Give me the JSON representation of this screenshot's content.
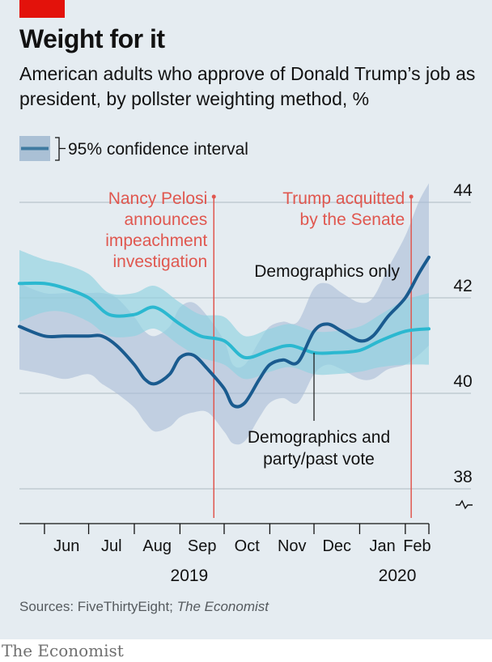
{
  "title": "Weight for it",
  "subtitle": "American adults who approve of Donald Trump’s job as president, by pollster weighting method, %",
  "source_prefix": "Sources: FiveThirtyEight; ",
  "source_italic": "The Economist",
  "brand": "The Economist",
  "colors": {
    "dark_line": "#1a5b8f",
    "light_line": "#2bb8d0",
    "dark_band": "#a9bcd7",
    "light_band": "#8fd3e0",
    "annotation": "#e0574f",
    "accent_bar": "#e3120b"
  },
  "chart_data": {
    "type": "line",
    "title": "Weight for it",
    "ylabel": "",
    "xlabel": "",
    "ylim": [
      38,
      44
    ],
    "y_ticks": [
      38,
      40,
      42,
      44
    ],
    "y_axis_break": true,
    "grid": true,
    "legend": {
      "position": "top-left",
      "entries": [
        "95% confidence interval"
      ]
    },
    "x_range": [
      "2019-05-15",
      "2020-02-17"
    ],
    "month_ticks": [
      "2019-06-01",
      "2019-07-01",
      "2019-08-01",
      "2019-09-01",
      "2019-10-01",
      "2019-11-01",
      "2019-12-01",
      "2020-01-01",
      "2020-02-01",
      "2020-03-01"
    ],
    "month_labels": [
      "Jun",
      "Jul",
      "Aug",
      "Sep",
      "Oct",
      "Nov",
      "Dec",
      "Jan",
      "Feb"
    ],
    "year_labels": [
      {
        "text": "2019",
        "date": "2019-09-01"
      },
      {
        "text": "2020",
        "date": "2020-02-01"
      }
    ],
    "events": [
      {
        "date": "2019-09-24",
        "lines": [
          "Nancy Pelosi",
          "announces",
          "impeachment",
          "investigation"
        ]
      },
      {
        "date": "2020-02-05",
        "lines": [
          "Trump acquitted",
          "by the Senate"
        ]
      }
    ],
    "series": [
      {
        "name": "Demographics only",
        "x": [
          "2019-05-15",
          "2019-06-01",
          "2019-06-15",
          "2019-07-01",
          "2019-07-10",
          "2019-07-20",
          "2019-08-01",
          "2019-08-08",
          "2019-08-15",
          "2019-08-25",
          "2019-09-01",
          "2019-09-10",
          "2019-09-20",
          "2019-10-01",
          "2019-10-07",
          "2019-10-15",
          "2019-10-25",
          "2019-11-01",
          "2019-11-10",
          "2019-11-20",
          "2019-12-01",
          "2019-12-10",
          "2019-12-20",
          "2020-01-01",
          "2020-01-10",
          "2020-01-20",
          "2020-02-01",
          "2020-02-10",
          "2020-02-17"
        ],
        "values": [
          41.4,
          41.2,
          41.2,
          41.2,
          41.2,
          41.0,
          40.6,
          40.3,
          40.2,
          40.4,
          40.75,
          40.8,
          40.5,
          40.1,
          39.75,
          39.8,
          40.3,
          40.6,
          40.7,
          40.65,
          41.3,
          41.45,
          41.3,
          41.1,
          41.2,
          41.6,
          42.0,
          42.5,
          42.85
        ],
        "ci_low": [
          40.5,
          40.4,
          40.3,
          40.4,
          40.2,
          40.0,
          39.7,
          39.4,
          39.2,
          39.3,
          39.5,
          39.6,
          39.6,
          39.2,
          38.95,
          39.0,
          39.5,
          39.8,
          39.9,
          39.8,
          40.4,
          40.6,
          40.5,
          40.3,
          40.3,
          40.5,
          40.6,
          40.8,
          41.0
        ],
        "ci_high": [
          42.3,
          42.1,
          42.1,
          42.1,
          42.1,
          42.0,
          41.6,
          41.3,
          41.2,
          41.4,
          41.8,
          41.9,
          41.6,
          41.1,
          40.6,
          40.6,
          41.1,
          41.4,
          41.5,
          41.5,
          42.2,
          42.3,
          42.1,
          41.9,
          42.0,
          42.6,
          43.3,
          44.0,
          44.4
        ]
      },
      {
        "name": "Demographics and party/past vote",
        "x": [
          "2019-05-15",
          "2019-06-01",
          "2019-06-15",
          "2019-07-01",
          "2019-07-15",
          "2019-08-01",
          "2019-08-15",
          "2019-09-01",
          "2019-09-15",
          "2019-10-01",
          "2019-10-15",
          "2019-11-01",
          "2019-11-15",
          "2019-12-01",
          "2019-12-15",
          "2020-01-01",
          "2020-01-15",
          "2020-02-01",
          "2020-02-17"
        ],
        "values": [
          42.3,
          42.3,
          42.2,
          42.0,
          41.65,
          41.65,
          41.8,
          41.45,
          41.2,
          41.1,
          40.75,
          40.9,
          41.0,
          40.85,
          40.85,
          40.9,
          41.1,
          41.3,
          41.35
        ],
        "ci_low": [
          41.5,
          41.7,
          41.7,
          41.5,
          41.2,
          41.2,
          41.35,
          41.0,
          40.75,
          40.6,
          40.3,
          40.45,
          40.55,
          40.4,
          40.4,
          40.45,
          40.55,
          40.6,
          40.6
        ],
        "ci_high": [
          43.0,
          42.8,
          42.7,
          42.5,
          42.1,
          42.1,
          42.25,
          41.9,
          41.65,
          41.6,
          41.2,
          41.35,
          41.45,
          41.3,
          41.3,
          41.4,
          41.65,
          41.95,
          42.1
        ]
      }
    ],
    "annotations": [
      {
        "text": "Demographics only",
        "series": 0
      },
      {
        "text_lines": [
          "Demographics and",
          "party/past vote"
        ],
        "series": 1
      }
    ]
  }
}
